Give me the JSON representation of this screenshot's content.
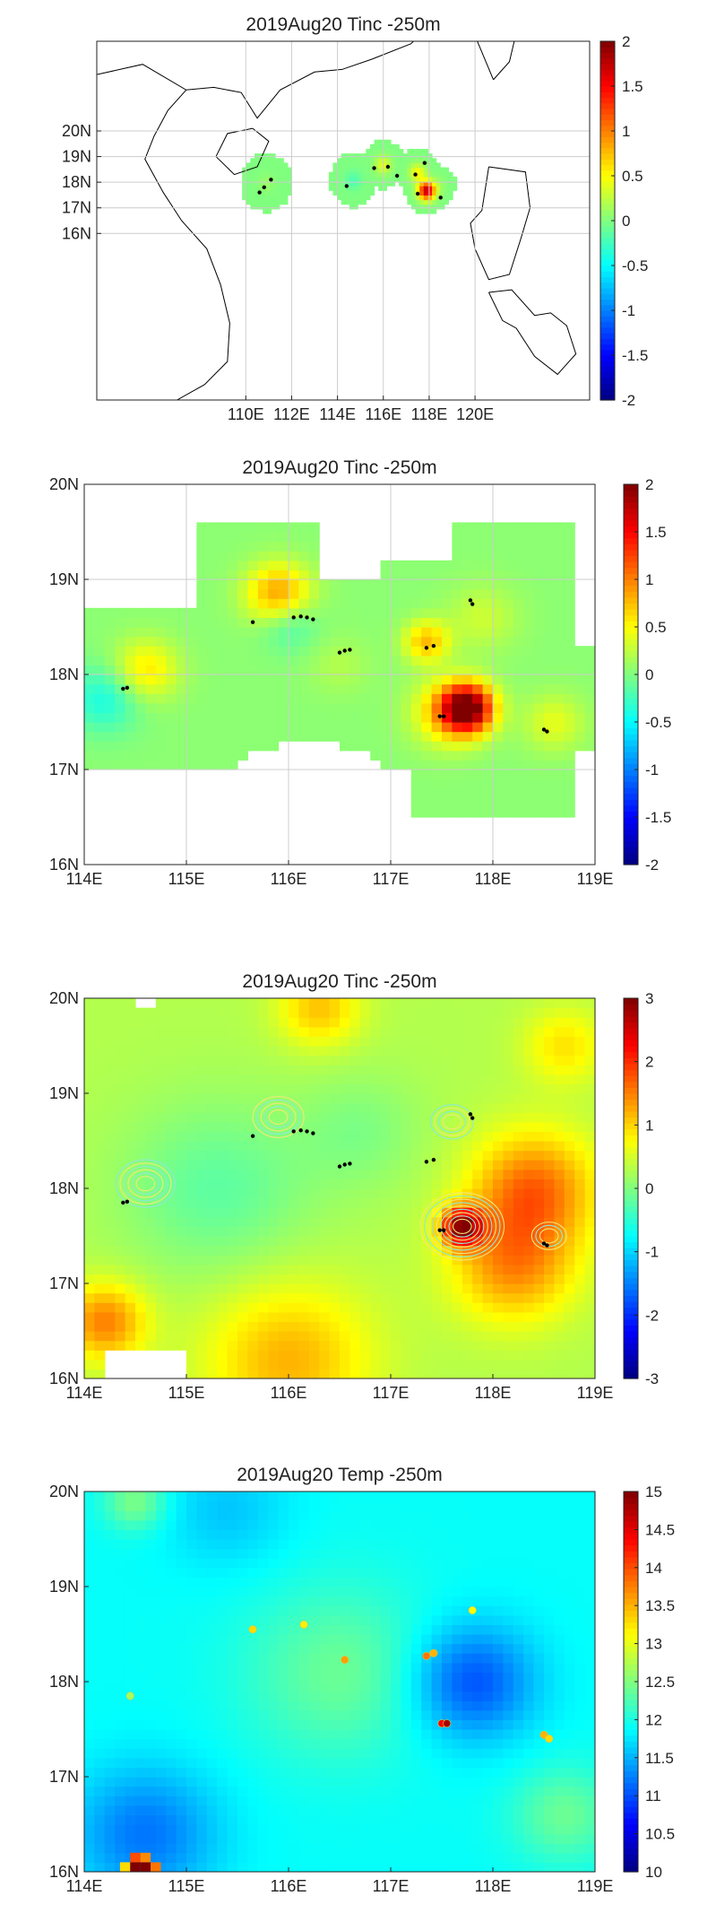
{
  "colors": {
    "ocean": "#ffffff",
    "coast": "#000000",
    "grid": "#cccccc",
    "frame": "#222222",
    "marker": "#000000"
  },
  "chart_data": [
    {
      "type": "heatmap",
      "panel": "map-overview",
      "title": "2019Aug20 Tinc -250m",
      "xticks": [
        "110E",
        "112E",
        "114E",
        "116E",
        "118E",
        "120E"
      ],
      "yticks": [
        "20N",
        "19N",
        "18N",
        "17N",
        "16N"
      ],
      "xlim": [
        103.5,
        125
      ],
      "ylim": [
        9.5,
        23.5
      ],
      "clim": [
        -2,
        2
      ],
      "cbticks": [
        "2",
        "1.5",
        "1",
        "0.5",
        "0",
        "-0.5",
        "-1",
        "-1.5",
        "-2"
      ],
      "colormap": "jet",
      "grid": true,
      "blobs": [
        {
          "lon": 110.8,
          "lat": 17.9,
          "r": 1.2,
          "v": 0.1
        },
        {
          "lon": 114.6,
          "lat": 18.0,
          "r": 1.1,
          "v": -0.2
        },
        {
          "lon": 115.9,
          "lat": 18.6,
          "r": 1.0,
          "v": 0.4
        },
        {
          "lon": 117.4,
          "lat": 18.3,
          "r": 1.0,
          "v": 0.5
        },
        {
          "lon": 117.8,
          "lat": 17.6,
          "r": 1.0,
          "v": 1.8
        },
        {
          "lon": 118.3,
          "lat": 17.8,
          "r": 0.8,
          "v": 0.1
        }
      ],
      "markers": [
        {
          "lon": 110.6,
          "lat": 17.6
        },
        {
          "lon": 110.8,
          "lat": 17.8
        },
        {
          "lon": 111.1,
          "lat": 18.1
        },
        {
          "lon": 114.4,
          "lat": 17.85
        },
        {
          "lon": 115.6,
          "lat": 18.55
        },
        {
          "lon": 116.2,
          "lat": 18.6
        },
        {
          "lon": 116.6,
          "lat": 18.25
        },
        {
          "lon": 117.4,
          "lat": 18.3
        },
        {
          "lon": 117.5,
          "lat": 17.55
        },
        {
          "lon": 117.8,
          "lat": 18.75
        },
        {
          "lon": 118.5,
          "lat": 17.4
        }
      ]
    },
    {
      "type": "heatmap",
      "panel": "zoom-tinc",
      "title": "2019Aug20 Tinc -250m",
      "xticks": [
        "114E",
        "115E",
        "116E",
        "117E",
        "118E",
        "119E"
      ],
      "yticks": [
        "20N",
        "19N",
        "18N",
        "17N",
        "16N"
      ],
      "xlim": [
        114,
        119
      ],
      "ylim": [
        16,
        20
      ],
      "clim": [
        -2,
        2
      ],
      "cbticks": [
        "2",
        "1.5",
        "1",
        "0.5",
        "0",
        "-0.5",
        "-1",
        "-1.5",
        "-2"
      ],
      "colormap": "jet",
      "grid": true,
      "base": 0.05,
      "blobs": [
        {
          "lon": 114.6,
          "lat": 18.05,
          "r": 0.32,
          "v": 0.55
        },
        {
          "lon": 114.2,
          "lat": 17.75,
          "r": 0.35,
          "v": -0.45
        },
        {
          "lon": 115.9,
          "lat": 18.85,
          "r": 0.32,
          "v": 0.85
        },
        {
          "lon": 116.0,
          "lat": 18.55,
          "r": 0.28,
          "v": -0.35
        },
        {
          "lon": 117.35,
          "lat": 18.35,
          "r": 0.22,
          "v": 0.7
        },
        {
          "lon": 117.75,
          "lat": 17.65,
          "r": 0.25,
          "v": 1.95
        },
        {
          "lon": 117.55,
          "lat": 17.6,
          "r": 0.35,
          "v": 0.6
        },
        {
          "lon": 118.6,
          "lat": 17.5,
          "r": 0.3,
          "v": 0.35
        },
        {
          "lon": 117.9,
          "lat": 18.6,
          "r": 0.35,
          "v": 0.25
        },
        {
          "lon": 116.5,
          "lat": 18.1,
          "r": 0.3,
          "v": 0.15
        }
      ],
      "markers": [
        {
          "lon": 114.38,
          "lat": 17.85
        },
        {
          "lon": 114.42,
          "lat": 17.86
        },
        {
          "lon": 115.65,
          "lat": 18.55
        },
        {
          "lon": 116.05,
          "lat": 18.6
        },
        {
          "lon": 116.12,
          "lat": 18.61
        },
        {
          "lon": 116.18,
          "lat": 18.6
        },
        {
          "lon": 116.24,
          "lat": 18.58
        },
        {
          "lon": 116.5,
          "lat": 18.23
        },
        {
          "lon": 116.55,
          "lat": 18.25
        },
        {
          "lon": 116.6,
          "lat": 18.26
        },
        {
          "lon": 117.35,
          "lat": 18.28
        },
        {
          "lon": 117.42,
          "lat": 18.3
        },
        {
          "lon": 117.48,
          "lat": 17.56
        },
        {
          "lon": 117.52,
          "lat": 17.56
        },
        {
          "lon": 117.78,
          "lat": 18.78
        },
        {
          "lon": 117.8,
          "lat": 18.74
        },
        {
          "lon": 118.5,
          "lat": 17.42
        },
        {
          "lon": 118.53,
          "lat": 17.4
        }
      ]
    },
    {
      "type": "heatmap",
      "panel": "zoom-tinc-full",
      "title": "2019Aug20 Tinc -250m",
      "xticks": [
        "114E",
        "115E",
        "116E",
        "117E",
        "118E",
        "119E"
      ],
      "yticks": [
        "20N",
        "19N",
        "18N",
        "17N",
        "16N"
      ],
      "xlim": [
        114,
        119
      ],
      "ylim": [
        16,
        20
      ],
      "clim": [
        -3,
        3
      ],
      "cbticks": [
        "3",
        "2",
        "1",
        "0",
        "-1",
        "-2",
        "-3"
      ],
      "colormap": "jet",
      "grid": false,
      "base": 0.3,
      "blobs": [
        {
          "lon": 115.3,
          "lat": 18.0,
          "r": 0.9,
          "v": -0.5
        },
        {
          "lon": 116.7,
          "lat": 18.6,
          "r": 0.6,
          "v": -0.3
        },
        {
          "lon": 118.4,
          "lat": 18.0,
          "r": 0.6,
          "v": 1.3
        },
        {
          "lon": 118.2,
          "lat": 17.2,
          "r": 0.6,
          "v": 1.1
        },
        {
          "lon": 117.7,
          "lat": 17.6,
          "r": 0.2,
          "v": 2.4
        },
        {
          "lon": 116.0,
          "lat": 16.2,
          "r": 0.8,
          "v": 0.9
        },
        {
          "lon": 114.2,
          "lat": 16.6,
          "r": 0.4,
          "v": 1.2
        },
        {
          "lon": 116.3,
          "lat": 19.9,
          "r": 0.4,
          "v": 0.8
        },
        {
          "lon": 118.7,
          "lat": 19.5,
          "r": 0.4,
          "v": 0.6
        }
      ],
      "contours": [
        {
          "lon": 114.6,
          "lat": 18.05,
          "rings": 6
        },
        {
          "lon": 115.9,
          "lat": 18.75,
          "rings": 5
        },
        {
          "lon": 117.6,
          "lat": 18.7,
          "rings": 4
        },
        {
          "lon": 117.7,
          "lat": 17.6,
          "rings": 9
        },
        {
          "lon": 118.55,
          "lat": 17.5,
          "rings": 3
        }
      ],
      "markers": [
        {
          "lon": 114.38,
          "lat": 17.85
        },
        {
          "lon": 114.42,
          "lat": 17.86
        },
        {
          "lon": 115.65,
          "lat": 18.55
        },
        {
          "lon": 116.05,
          "lat": 18.6
        },
        {
          "lon": 116.12,
          "lat": 18.61
        },
        {
          "lon": 116.18,
          "lat": 18.6
        },
        {
          "lon": 116.24,
          "lat": 18.58
        },
        {
          "lon": 116.5,
          "lat": 18.23
        },
        {
          "lon": 116.55,
          "lat": 18.25
        },
        {
          "lon": 116.6,
          "lat": 18.26
        },
        {
          "lon": 117.35,
          "lat": 18.28
        },
        {
          "lon": 117.42,
          "lat": 18.3
        },
        {
          "lon": 117.48,
          "lat": 17.56
        },
        {
          "lon": 117.52,
          "lat": 17.56
        },
        {
          "lon": 117.78,
          "lat": 18.78
        },
        {
          "lon": 117.8,
          "lat": 18.74
        },
        {
          "lon": 118.5,
          "lat": 17.42
        },
        {
          "lon": 118.53,
          "lat": 17.4
        }
      ]
    },
    {
      "type": "heatmap",
      "panel": "zoom-temp",
      "title": "2019Aug20 Temp -250m",
      "xticks": [
        "114E",
        "115E",
        "116E",
        "117E",
        "118E",
        "119E"
      ],
      "yticks": [
        "20N",
        "19N",
        "18N",
        "17N",
        "16N"
      ],
      "xlim": [
        114,
        119
      ],
      "ylim": [
        16,
        20
      ],
      "clim": [
        10,
        15
      ],
      "cbticks": [
        "15",
        "14.5",
        "14",
        "13.5",
        "13",
        "12.5",
        "12",
        "11.5",
        "11",
        "10.5",
        "10"
      ],
      "colormap": "jet",
      "grid": false,
      "base": 11.9,
      "blobs": [
        {
          "lon": 117.8,
          "lat": 18.0,
          "r": 0.6,
          "v": -0.9
        },
        {
          "lon": 114.6,
          "lat": 16.4,
          "r": 0.7,
          "v": -0.7
        },
        {
          "lon": 116.5,
          "lat": 18.1,
          "r": 0.9,
          "v": 0.5
        },
        {
          "lon": 118.7,
          "lat": 16.6,
          "r": 0.5,
          "v": 0.5
        },
        {
          "lon": 115.4,
          "lat": 19.8,
          "r": 0.6,
          "v": -0.3
        },
        {
          "lon": 114.5,
          "lat": 19.9,
          "r": 0.3,
          "v": 0.6
        }
      ],
      "points": [
        {
          "lon": 115.65,
          "lat": 18.55,
          "v": 13.3
        },
        {
          "lon": 116.15,
          "lat": 18.6,
          "v": 13.2
        },
        {
          "lon": 116.55,
          "lat": 18.23,
          "v": 13.6
        },
        {
          "lon": 117.35,
          "lat": 18.27,
          "v": 13.8
        },
        {
          "lon": 117.42,
          "lat": 18.3,
          "v": 13.5
        },
        {
          "lon": 117.5,
          "lat": 17.56,
          "v": 14.4
        },
        {
          "lon": 117.55,
          "lat": 17.56,
          "v": 14.8
        },
        {
          "lon": 117.8,
          "lat": 18.75,
          "v": 13.1
        },
        {
          "lon": 118.5,
          "lat": 17.44,
          "v": 13.5
        },
        {
          "lon": 118.55,
          "lat": 17.4,
          "v": 13.3
        },
        {
          "lon": 114.45,
          "lat": 17.85,
          "v": 12.7
        }
      ],
      "hotspot": [
        {
          "lon": 114.4,
          "lat": 16.05,
          "v": 13.3
        },
        {
          "lon": 114.5,
          "lat": 16.05,
          "v": 15
        },
        {
          "lon": 114.6,
          "lat": 16.05,
          "v": 15
        },
        {
          "lon": 114.7,
          "lat": 16.05,
          "v": 13.8
        },
        {
          "lon": 114.5,
          "lat": 16.15,
          "v": 14
        },
        {
          "lon": 114.6,
          "lat": 16.15,
          "v": 13.7
        }
      ]
    }
  ]
}
